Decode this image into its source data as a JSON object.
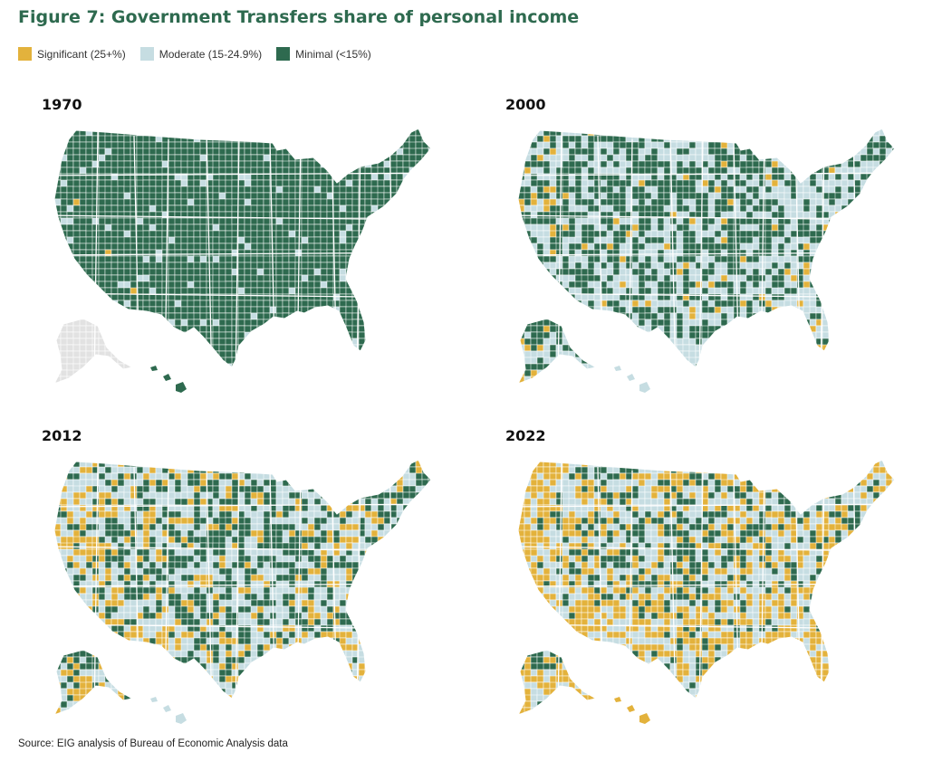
{
  "title": "Figure 7: Government Transfers share of personal income",
  "legend": [
    {
      "label": "Significant (25+%)",
      "color": "#e3b23c"
    },
    {
      "label": "Moderate (15-24.9%)",
      "color": "#c6dde2"
    },
    {
      "label": "Minimal (<15%)",
      "color": "#2e6a4f"
    }
  ],
  "source": "Source: EIG analysis of Bureau of Economic Analysis data",
  "panels": [
    {
      "year": "1970",
      "dominant": "minimal"
    },
    {
      "year": "2000",
      "dominant": "moderate"
    },
    {
      "year": "2012",
      "dominant": "moderate-significant"
    },
    {
      "year": "2022",
      "dominant": "significant"
    }
  ],
  "colors": {
    "significant": "#e3b23c",
    "moderate": "#c6dde2",
    "minimal": "#2e6a4f",
    "no_data": "#e2e2e2",
    "border": "#ffffff"
  }
}
